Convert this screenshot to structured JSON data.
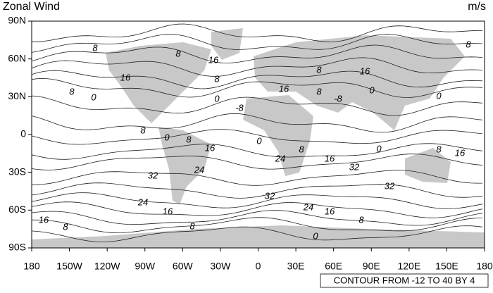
{
  "header": {
    "title": "Zonal Wind",
    "units": "m/s"
  },
  "map": {
    "y_ticks": [
      "90N",
      "60N",
      "30N",
      "0",
      "30S",
      "60S",
      "90S"
    ],
    "x_ticks": [
      "180",
      "150W",
      "120W",
      "90W",
      "60W",
      "30W",
      "0",
      "30E",
      "60E",
      "90E",
      "120E",
      "150E",
      "180"
    ],
    "contour_labels": [
      8,
      8,
      16,
      8,
      16,
      8,
      0,
      8,
      8,
      16,
      16,
      8,
      0,
      -8,
      -8,
      0,
      0,
      8,
      0,
      8,
      16,
      0,
      8,
      24,
      16,
      0,
      8,
      16,
      32,
      24,
      32,
      32,
      32,
      24,
      24,
      16,
      16,
      16,
      8,
      8,
      8,
      0
    ]
  },
  "footer": "CONTOUR FROM -12 TO 40 BY 4"
}
